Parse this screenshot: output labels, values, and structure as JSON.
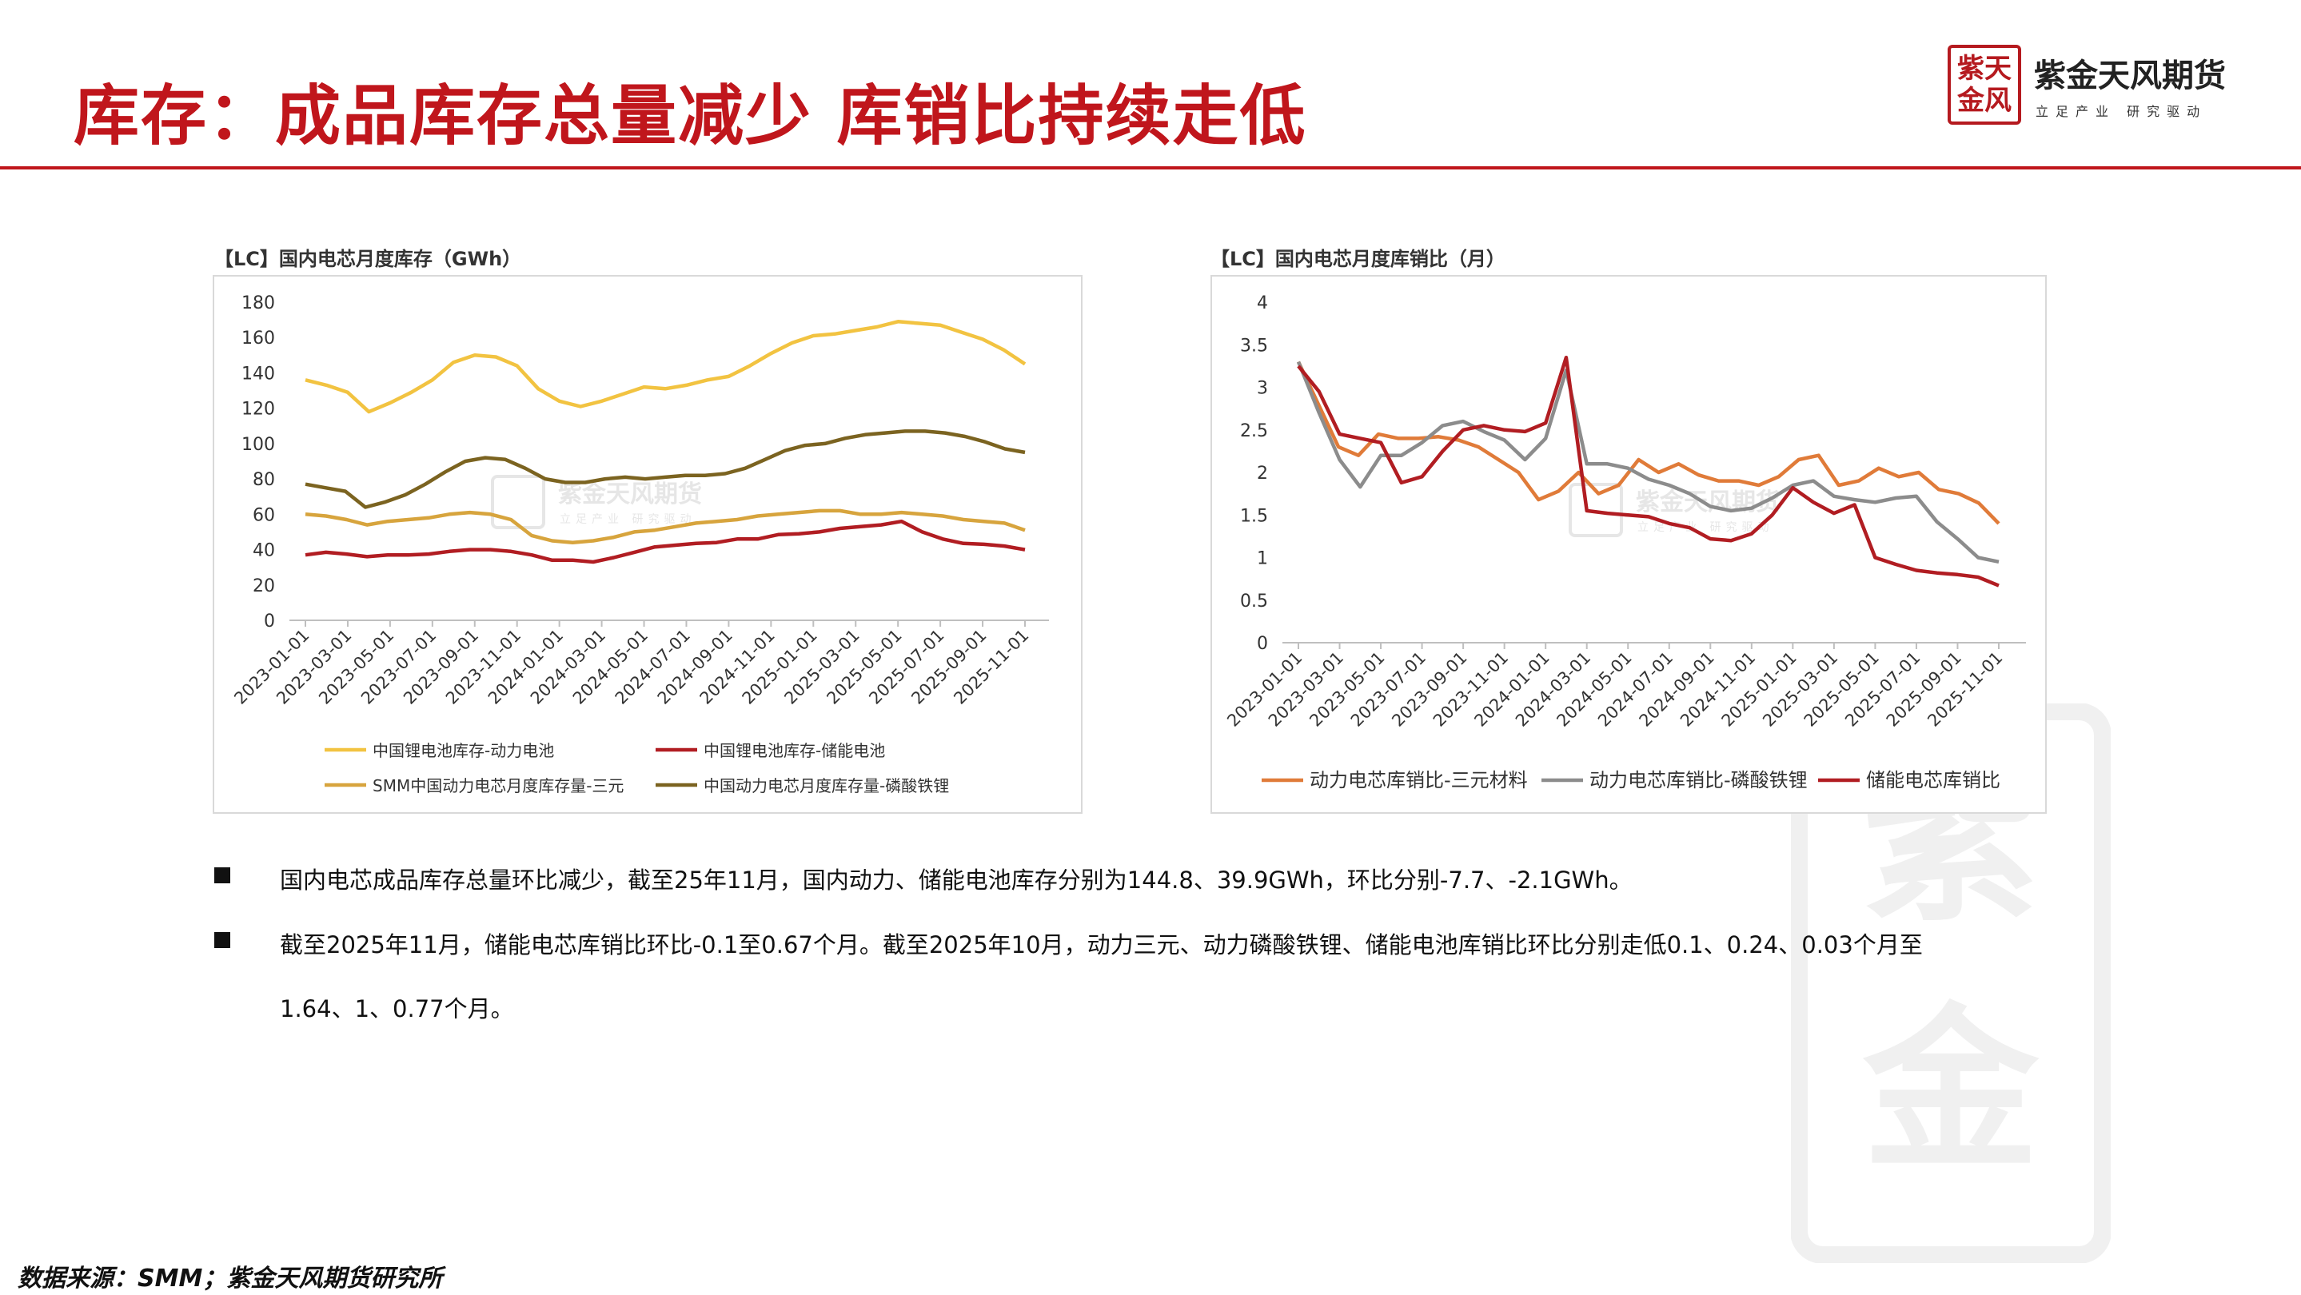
{
  "title": "库存：成品库存总量减少 库销比持续走低",
  "logo": {
    "seal": "紫天金风",
    "name": "紫金天风期货",
    "slogan": "立足产业 研究驱动"
  },
  "left_chart_title": "【LC】国内电芯月度库存（GWh）",
  "right_chart_title": "【LC】国内电芯月度库销比（月）",
  "watermark": {
    "name": "紫金天风期货",
    "slogan": "立足产业 研究驱动"
  },
  "notes": [
    "国内电芯成品库存总量环比减少，截至25年11月，国内动力、储能电池库存分别为144.8、39.9GWh，环比分别-7.7、-2.1GWh。",
    "截至2025年11月，储能电芯库销比环比-0.1至0.67个月。截至2025年10月，动力三元、动力磷酸铁锂、储能电池库销比环比分别走低0.1、0.24、0.03个月至",
    "1.64、1、0.77个月。"
  ],
  "source": "数据来源：SMM；紫金天风期货研究所",
  "chart_data": [
    {
      "type": "line",
      "title": "【LC】国内电芯月度库存（GWh）",
      "x_tick_labels": [
        "2023-01-01",
        "2023-03-01",
        "2023-05-01",
        "2023-07-01",
        "2023-09-01",
        "2023-11-01",
        "2024-01-01",
        "2024-03-01",
        "2024-05-01",
        "2024-07-01",
        "2024-09-01",
        "2024-11-01",
        "2025-01-01",
        "2025-03-01",
        "2025-05-01",
        "2025-07-01",
        "2025-09-01",
        "2025-11-01"
      ],
      "y_ticks": [
        "0",
        "20",
        "40",
        "60",
        "80",
        "100",
        "120",
        "140",
        "160",
        "180"
      ],
      "ylim": [
        0,
        180
      ],
      "legend": "bottom",
      "series": [
        {
          "name": "中国锂电池库存-动力电池",
          "color": "#f2c341",
          "values": [
            136,
            133,
            129,
            118,
            123,
            129,
            136,
            146,
            150,
            149,
            144,
            131,
            124,
            121,
            124,
            128,
            132,
            131,
            133,
            136,
            138,
            144,
            151,
            157,
            161,
            162,
            164,
            166,
            169,
            168,
            167,
            163,
            159,
            153,
            145
          ]
        },
        {
          "name": "中国锂电池库存-储能电池",
          "color": "#b11d22",
          "values": [
            37,
            38.5,
            37.5,
            36,
            37,
            37,
            37.5,
            39,
            40,
            40,
            39,
            37,
            34,
            34,
            33,
            35.5,
            38.5,
            41.5,
            42.5,
            43.5,
            44,
            46,
            46,
            48.5,
            49,
            50,
            52,
            53,
            54,
            56,
            50,
            46,
            43.5,
            43,
            42,
            40
          ]
        },
        {
          "name": "SMM中国动力电芯月度库存量-三元",
          "color": "#d7a43d",
          "values": [
            60,
            59,
            57,
            54,
            56,
            57,
            58,
            60,
            61,
            60,
            57,
            48,
            45,
            44,
            45,
            47,
            50,
            51,
            53,
            55,
            56,
            57,
            59,
            60,
            61,
            62,
            62,
            60,
            60,
            61,
            60,
            59,
            57,
            56,
            55,
            51
          ]
        },
        {
          "name": "中国动力电芯月度库存量-磷酸铁锂",
          "color": "#7b6320",
          "values": [
            77,
            75,
            73,
            64,
            67,
            71,
            77,
            84,
            90,
            92,
            91,
            86,
            80,
            78,
            78,
            80,
            81,
            80,
            81,
            82,
            82,
            83,
            86,
            91,
            96,
            99,
            100,
            103,
            105,
            106,
            107,
            107,
            106,
            104,
            101,
            97,
            95
          ]
        }
      ]
    },
    {
      "type": "line",
      "title": "【LC】国内电芯月度库销比（月）",
      "x_tick_labels": [
        "2023-01-01",
        "2023-03-01",
        "2023-05-01",
        "2023-07-01",
        "2023-09-01",
        "2023-11-01",
        "2024-01-01",
        "2024-03-01",
        "2024-05-01",
        "2024-07-01",
        "2024-09-01",
        "2024-11-01",
        "2025-01-01",
        "2025-03-01",
        "2025-05-01",
        "2025-07-01",
        "2025-09-01",
        "2025-11-01"
      ],
      "y_ticks": [
        "0",
        "0.5",
        "1",
        "1.5",
        "2",
        "2.5",
        "3",
        "3.5",
        "4"
      ],
      "ylim": [
        0,
        4
      ],
      "legend": "bottom",
      "series": [
        {
          "name": "动力电芯库销比-三元材料",
          "color": "#e07b39",
          "values": [
            3.3,
            2.8,
            2.3,
            2.2,
            2.45,
            2.4,
            2.4,
            2.42,
            2.38,
            2.3,
            2.15,
            2.0,
            1.68,
            1.78,
            2.0,
            1.75,
            1.85,
            2.15,
            2.0,
            2.1,
            1.97,
            1.9,
            1.9,
            1.85,
            1.95,
            2.15,
            2.2,
            1.85,
            1.9,
            2.05,
            1.95,
            2.0,
            1.8,
            1.75,
            1.64,
            1.4
          ]
        },
        {
          "name": "动力电芯库销比-磷酸铁锂",
          "color": "#8c8c8c",
          "values": [
            3.3,
            2.7,
            2.15,
            1.83,
            2.2,
            2.2,
            2.35,
            2.55,
            2.6,
            2.48,
            2.38,
            2.15,
            2.4,
            3.2,
            2.1,
            2.1,
            2.05,
            1.92,
            1.85,
            1.75,
            1.6,
            1.55,
            1.58,
            1.7,
            1.85,
            1.9,
            1.72,
            1.68,
            1.65,
            1.7,
            1.72,
            1.42,
            1.22,
            1.0,
            0.95
          ]
        },
        {
          "name": "储能电芯库销比",
          "color": "#b11d22",
          "values": [
            3.25,
            2.95,
            2.45,
            2.4,
            2.35,
            1.88,
            1.95,
            2.25,
            2.5,
            2.55,
            2.5,
            2.48,
            2.58,
            3.35,
            1.55,
            1.52,
            1.5,
            1.48,
            1.4,
            1.35,
            1.22,
            1.2,
            1.28,
            1.5,
            1.82,
            1.65,
            1.52,
            1.62,
            1.0,
            0.92,
            0.85,
            0.82,
            0.8,
            0.77,
            0.67
          ]
        }
      ]
    }
  ]
}
